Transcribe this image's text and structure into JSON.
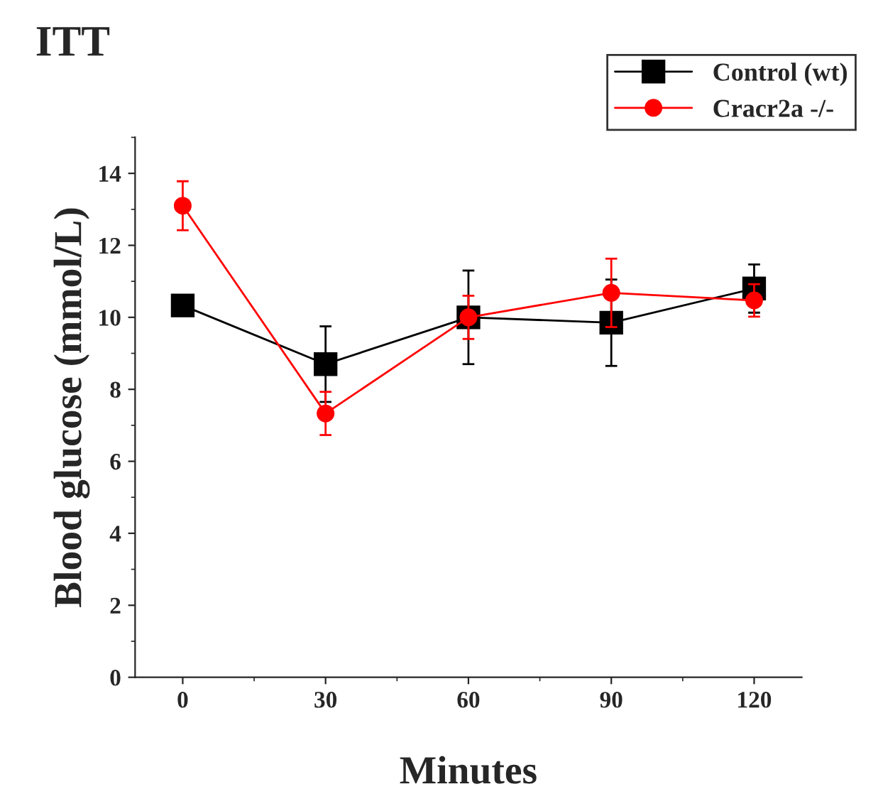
{
  "chart_data": {
    "type": "line",
    "title": "ITT",
    "xlabel": "Minutes",
    "ylabel": "Blood glucose (mmol/L)",
    "x": [
      0,
      30,
      60,
      90,
      120
    ],
    "series": [
      {
        "name": "Control (wt)",
        "color": "#000000",
        "marker": "square",
        "values": [
          10.33,
          8.7,
          10.0,
          9.85,
          10.8
        ],
        "errors": [
          null,
          1.05,
          1.3,
          1.2,
          0.67
        ]
      },
      {
        "name": "Cracr2a -/-",
        "color": "#ff0000",
        "marker": "circle",
        "values": [
          13.1,
          7.33,
          10.0,
          10.68,
          10.47
        ],
        "errors": [
          0.68,
          0.6,
          0.6,
          0.95,
          0.45
        ]
      }
    ],
    "xlim": [
      -10,
      130
    ],
    "xticks": [
      0,
      30,
      60,
      90,
      120
    ],
    "ylim": [
      0,
      15
    ],
    "yticks": [
      0,
      2,
      4,
      6,
      8,
      10,
      12,
      14
    ],
    "grid": false,
    "legend": "top right",
    "line_style": "solid"
  }
}
